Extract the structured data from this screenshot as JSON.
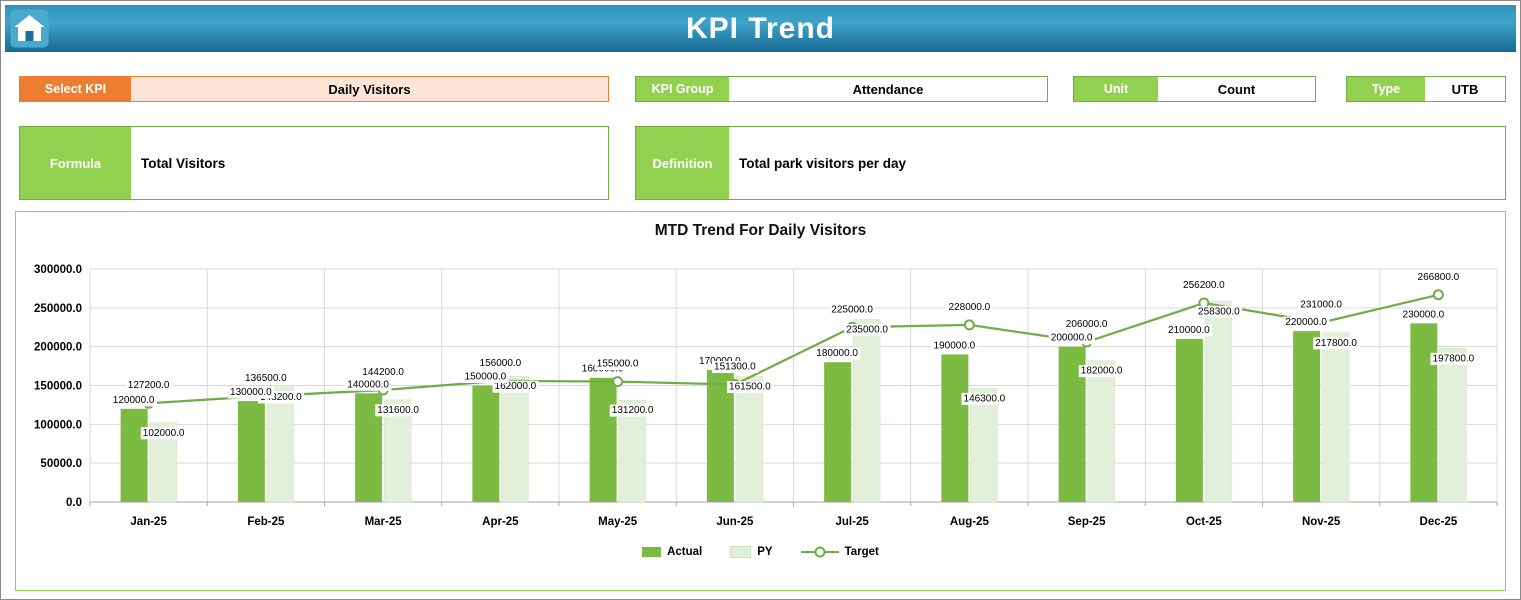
{
  "header": {
    "title": "KPI Trend"
  },
  "fields": {
    "select_kpi": {
      "label": "Select KPI",
      "value": "Daily Visitors"
    },
    "kpi_group": {
      "label": "KPI Group",
      "value": "Attendance"
    },
    "unit": {
      "label": "Unit",
      "value": "Count"
    },
    "type": {
      "label": "Type",
      "value": "UTB"
    },
    "formula": {
      "label": "Formula",
      "value": "Total Visitors"
    },
    "definition": {
      "label": "Definition",
      "value": "Total park visitors per day"
    }
  },
  "chart_data": {
    "type": "bar",
    "combo": "clustered-bars-with-target-line",
    "title": "MTD Trend For Daily Visitors",
    "categories": [
      "Jan-25",
      "Feb-25",
      "Mar-25",
      "Apr-25",
      "May-25",
      "Jun-25",
      "Jul-25",
      "Aug-25",
      "Sep-25",
      "Oct-25",
      "Nov-25",
      "Dec-25"
    ],
    "series": [
      {
        "name": "Actual",
        "render": "bar",
        "color": "#7CBB42",
        "values": [
          120000,
          130000,
          140000,
          150000,
          160000,
          170000,
          180000,
          190000,
          200000,
          210000,
          220000,
          230000
        ]
      },
      {
        "name": "PY",
        "render": "bar",
        "color": "#E2EFDA",
        "values": [
          102000,
          148200,
          131600,
          162000,
          131200,
          161500,
          235000,
          146300,
          182000,
          258300,
          217800,
          197800
        ]
      },
      {
        "name": "Target",
        "render": "line",
        "color": "#70AD47",
        "marker": "circle",
        "values": [
          127200,
          136500,
          144200,
          156000,
          155000,
          151300,
          225000,
          228000,
          206000,
          256200,
          231000,
          266800
        ]
      }
    ],
    "ylim": [
      0,
      300000
    ],
    "ytick_step": 50000,
    "value_format": "one_decimal",
    "grid": true,
    "legend_position": "bottom"
  },
  "colors": {
    "header_blue": "#2F93BC",
    "accent_orange": "#ED7D31",
    "orange_fill": "#FBE5D6",
    "green_label": "#92D050",
    "green_border": "#70AD47",
    "actual_bar": "#7CBB42",
    "py_bar": "#E2EFDA",
    "target_line": "#70AD47",
    "gridline": "#D9D9D9",
    "axis": "#A6A6A6"
  }
}
